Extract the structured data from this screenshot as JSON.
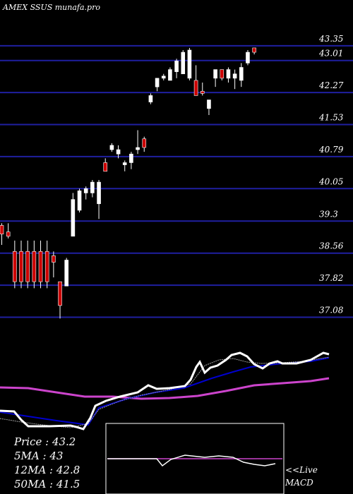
{
  "chart_data": {
    "type": "candlestick",
    "title": "AMEX  SSUS munafa.pro",
    "y_ticks": [
      43.35,
      43.01,
      42.27,
      41.53,
      40.79,
      40.05,
      39.3,
      38.56,
      37.82,
      37.08
    ],
    "y_tick_labels": [
      "43.35",
      "43.01",
      "42.27",
      "41.53",
      "40.79",
      "40.05",
      "39.3",
      "38.56",
      "37.82",
      "37.08"
    ],
    "candles": [
      {
        "o": 39.0,
        "h": 39.25,
        "l": 38.75,
        "c": 39.2,
        "color": "red"
      },
      {
        "o": 39.05,
        "h": 39.25,
        "l": 38.9,
        "c": 38.95,
        "color": "red"
      },
      {
        "o": 38.6,
        "h": 38.85,
        "l": 37.75,
        "c": 37.9,
        "color": "red"
      },
      {
        "o": 38.6,
        "h": 38.85,
        "l": 37.75,
        "c": 37.9,
        "color": "red"
      },
      {
        "o": 38.6,
        "h": 38.85,
        "l": 37.75,
        "c": 37.9,
        "color": "red"
      },
      {
        "o": 38.6,
        "h": 38.85,
        "l": 37.75,
        "c": 37.9,
        "color": "red"
      },
      {
        "o": 38.6,
        "h": 38.85,
        "l": 37.75,
        "c": 37.9,
        "color": "red"
      },
      {
        "o": 38.6,
        "h": 38.85,
        "l": 37.75,
        "c": 37.9,
        "color": "red"
      },
      {
        "o": 38.5,
        "h": 38.6,
        "l": 38.0,
        "c": 38.35,
        "color": "red"
      },
      {
        "o": 37.9,
        "h": 37.9,
        "l": 37.05,
        "c": 37.35,
        "color": "red"
      },
      {
        "o": 37.8,
        "h": 38.45,
        "l": 37.8,
        "c": 38.4,
        "color": "white"
      },
      {
        "o": 38.95,
        "h": 39.95,
        "l": 38.95,
        "c": 39.8,
        "color": "white"
      },
      {
        "o": 39.55,
        "h": 40.05,
        "l": 39.5,
        "c": 40.0,
        "color": "white"
      },
      {
        "o": 39.95,
        "h": 40.1,
        "l": 39.8,
        "c": 40.05,
        "color": "white"
      },
      {
        "o": 39.95,
        "h": 40.25,
        "l": 39.85,
        "c": 40.2,
        "color": "white"
      },
      {
        "o": 39.7,
        "h": 40.25,
        "l": 39.35,
        "c": 40.2,
        "color": "white"
      },
      {
        "o": 40.65,
        "h": 40.75,
        "l": 40.45,
        "c": 40.45,
        "color": "red"
      },
      {
        "o": 40.95,
        "h": 41.1,
        "l": 40.9,
        "c": 41.05,
        "color": "white"
      },
      {
        "o": 40.85,
        "h": 41.05,
        "l": 40.75,
        "c": 40.95,
        "color": "white"
      },
      {
        "o": 40.6,
        "h": 40.7,
        "l": 40.45,
        "c": 40.65,
        "color": "white"
      },
      {
        "o": 40.65,
        "h": 40.9,
        "l": 40.5,
        "c": 40.85,
        "color": "white"
      },
      {
        "o": 40.95,
        "h": 41.4,
        "l": 40.85,
        "c": 41.0,
        "color": "white"
      },
      {
        "o": 41.2,
        "h": 41.25,
        "l": 40.9,
        "c": 41.0,
        "color": "red"
      },
      {
        "o": 42.05,
        "h": 42.25,
        "l": 42.0,
        "c": 42.2,
        "color": "white"
      },
      {
        "o": 42.4,
        "h": 42.6,
        "l": 42.3,
        "c": 42.6,
        "color": "white"
      },
      {
        "o": 42.6,
        "h": 42.7,
        "l": 42.55,
        "c": 42.65,
        "color": "white"
      },
      {
        "o": 42.55,
        "h": 42.85,
        "l": 42.55,
        "c": 42.8,
        "color": "white"
      },
      {
        "o": 42.75,
        "h": 43.05,
        "l": 42.6,
        "c": 43.0,
        "color": "white"
      },
      {
        "o": 43.2,
        "h": 43.25,
        "l": 42.7,
        "c": 42.7,
        "color": "white"
      },
      {
        "o": 42.6,
        "h": 43.3,
        "l": 42.55,
        "c": 43.25,
        "color": "white"
      },
      {
        "o": 42.55,
        "h": 42.9,
        "l": 42.2,
        "c": 42.2,
        "color": "red"
      },
      {
        "o": 42.3,
        "h": 42.5,
        "l": 42.2,
        "c": 42.25,
        "color": "red"
      },
      {
        "o": 41.9,
        "h": 42.1,
        "l": 41.75,
        "c": 42.1,
        "color": "white"
      },
      {
        "o": 42.6,
        "h": 42.8,
        "l": 42.4,
        "c": 42.8,
        "color": "white"
      },
      {
        "o": 42.6,
        "h": 42.8,
        "l": 42.55,
        "c": 42.8,
        "color": "red"
      },
      {
        "o": 42.6,
        "h": 42.85,
        "l": 42.5,
        "c": 42.8,
        "color": "white"
      },
      {
        "o": 42.6,
        "h": 42.8,
        "l": 42.35,
        "c": 42.7,
        "color": "white"
      },
      {
        "o": 42.55,
        "h": 42.95,
        "l": 42.4,
        "c": 42.85,
        "color": "white"
      },
      {
        "o": 42.95,
        "h": 43.25,
        "l": 42.9,
        "c": 43.2,
        "color": "white"
      },
      {
        "o": 43.2,
        "h": 43.3,
        "l": 43.15,
        "c": 43.3,
        "color": "red"
      }
    ],
    "indicators": {
      "price_label": "Price",
      "price_value": "43.2",
      "ma5_label": "5MA",
      "ma5_value": "43",
      "ma12_label": "12MA",
      "ma12_value": "42.8",
      "ma50_label": "50MA",
      "ma50_value": "41.5"
    },
    "macd_label_line1": "<<Live",
    "macd_label_line2": "MACD",
    "colors": {
      "background": "#000000",
      "gridline": "#1f1fa0",
      "bull": "#ffffff",
      "bear": "#cc0000",
      "price_line": "#ffffff",
      "ma_short": "#a0a0a0",
      "ma_mid": "#0000cc",
      "ma_long": "#cc44cc",
      "macd_signal": "#cc44cc"
    }
  }
}
